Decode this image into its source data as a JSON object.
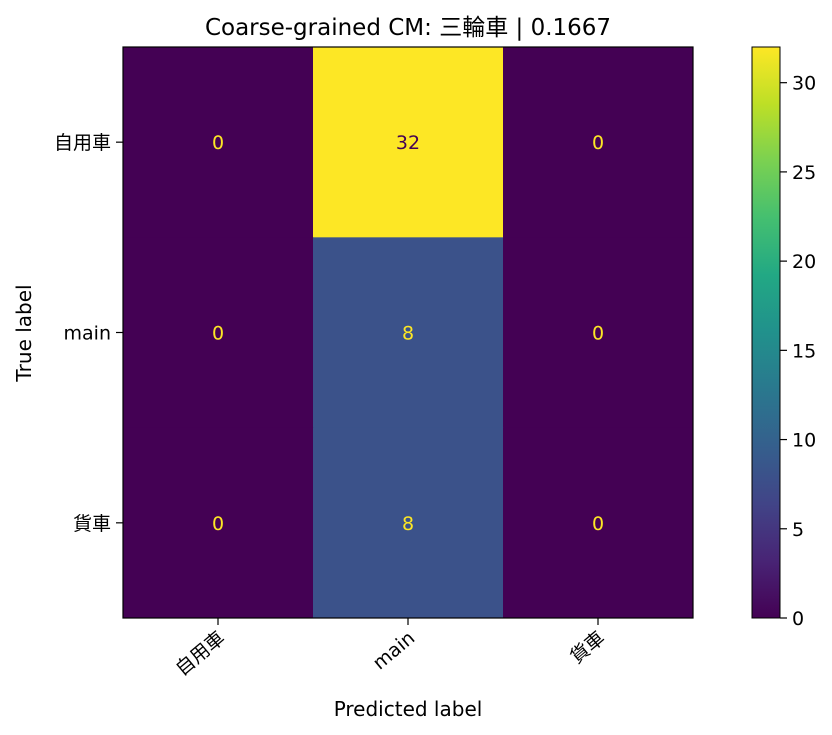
{
  "chart_data": {
    "type": "heatmap",
    "title": "Coarse-grained CM: 三輪車 | 0.1667",
    "xlabel": "Predicted label",
    "ylabel": "True label",
    "row_labels": [
      "自用車",
      "main",
      "貨車"
    ],
    "col_labels": [
      "自用車",
      "main",
      "貨車"
    ],
    "values": [
      [
        0,
        32,
        0
      ],
      [
        0,
        8,
        0
      ],
      [
        0,
        8,
        0
      ]
    ],
    "colormap": "viridis",
    "colorbar": {
      "range": [
        0,
        32
      ],
      "ticks": [
        0,
        5,
        10,
        15,
        20,
        25,
        30
      ]
    },
    "colors": {
      "low": "#440154",
      "high": "#fde725",
      "mid_8": "#3b528b",
      "text_on_dark": "#fde725",
      "text_on_light": "#440154"
    }
  }
}
